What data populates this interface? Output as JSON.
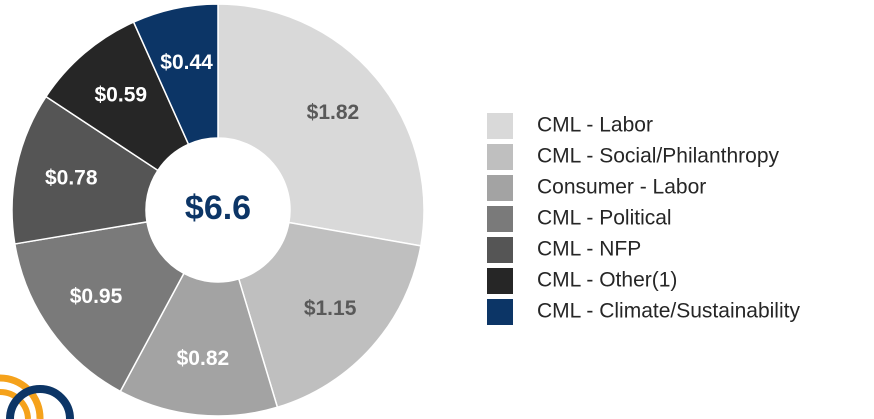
{
  "chart_data": {
    "type": "donut",
    "center_label": "$6.6",
    "categories": [
      "CML - Labor",
      "CML - Social/Philanthropy",
      "Consumer - Labor",
      "CML - Political",
      "CML - NFP",
      "CML - Other(1)",
      "CML - Climate/Sustainability"
    ],
    "values": [
      1.82,
      1.15,
      0.82,
      0.95,
      0.78,
      0.59,
      0.44
    ],
    "value_labels": [
      "$1.82",
      "$1.15",
      "$0.82",
      "$0.95",
      "$0.78",
      "$0.59",
      "$0.44"
    ],
    "colors": [
      "#d9d9d9",
      "#bfbfbf",
      "#a3a3a3",
      "#7a7a7a",
      "#555555",
      "#262626",
      "#0c3566"
    ],
    "legend": "right"
  }
}
